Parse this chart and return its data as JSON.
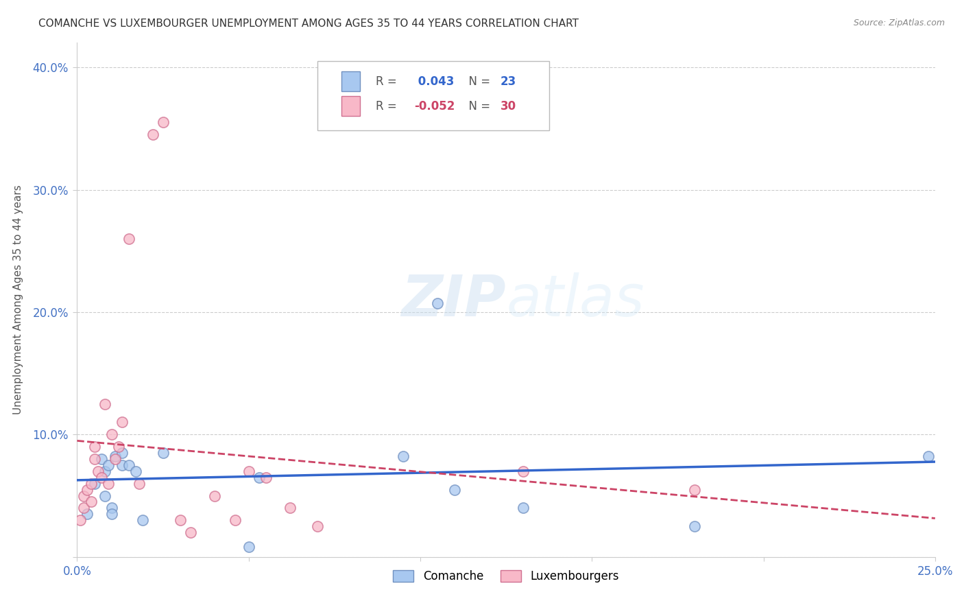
{
  "title": "COMANCHE VS LUXEMBOURGER UNEMPLOYMENT AMONG AGES 35 TO 44 YEARS CORRELATION CHART",
  "source": "Source: ZipAtlas.com",
  "ylabel": "Unemployment Among Ages 35 to 44 years",
  "xlim": [
    0.0,
    0.25
  ],
  "ylim": [
    0.0,
    0.42
  ],
  "xticks": [
    0.0,
    0.05,
    0.1,
    0.15,
    0.2,
    0.25
  ],
  "yticks": [
    0.0,
    0.1,
    0.2,
    0.3,
    0.4
  ],
  "comanche_R": 0.043,
  "comanche_N": 23,
  "luxembourger_R": -0.052,
  "luxembourger_N": 30,
  "comanche_color": "#a8c8f0",
  "luxembourger_color": "#f8b8c8",
  "comanche_edge_color": "#7090c0",
  "luxembourger_edge_color": "#d07090",
  "comanche_line_color": "#3366cc",
  "luxembourger_line_color": "#cc4466",
  "watermark_color": "#ddeeff",
  "background_color": "#ffffff",
  "grid_color": "#cccccc",
  "tick_color": "#4472c4",
  "title_color": "#333333",
  "ylabel_color": "#555555",
  "source_color": "#888888",
  "comanche_x": [
    0.003,
    0.005,
    0.007,
    0.008,
    0.008,
    0.009,
    0.01,
    0.01,
    0.011,
    0.013,
    0.013,
    0.015,
    0.017,
    0.019,
    0.025,
    0.05,
    0.053,
    0.095,
    0.105,
    0.11,
    0.13,
    0.18,
    0.248
  ],
  "comanche_y": [
    0.035,
    0.06,
    0.08,
    0.05,
    0.07,
    0.075,
    0.04,
    0.035,
    0.082,
    0.085,
    0.075,
    0.075,
    0.07,
    0.03,
    0.085,
    0.008,
    0.065,
    0.082,
    0.207,
    0.055,
    0.04,
    0.025,
    0.082
  ],
  "luxembourger_x": [
    0.001,
    0.002,
    0.002,
    0.003,
    0.004,
    0.004,
    0.005,
    0.005,
    0.006,
    0.007,
    0.008,
    0.009,
    0.01,
    0.011,
    0.012,
    0.013,
    0.015,
    0.018,
    0.022,
    0.025,
    0.03,
    0.033,
    0.04,
    0.046,
    0.05,
    0.055,
    0.062,
    0.07,
    0.13,
    0.18
  ],
  "luxembourger_y": [
    0.03,
    0.05,
    0.04,
    0.055,
    0.045,
    0.06,
    0.09,
    0.08,
    0.07,
    0.065,
    0.125,
    0.06,
    0.1,
    0.08,
    0.09,
    0.11,
    0.26,
    0.06,
    0.345,
    0.355,
    0.03,
    0.02,
    0.05,
    0.03,
    0.07,
    0.065,
    0.04,
    0.025,
    0.07,
    0.055
  ]
}
